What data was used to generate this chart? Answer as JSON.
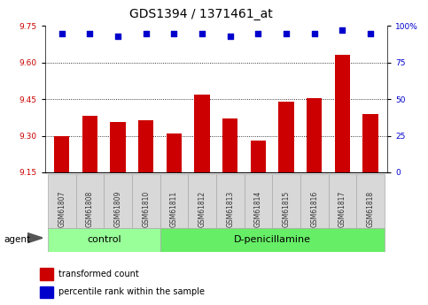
{
  "title": "GDS1394 / 1371461_at",
  "samples": [
    "GSM61807",
    "GSM61808",
    "GSM61809",
    "GSM61810",
    "GSM61811",
    "GSM61812",
    "GSM61813",
    "GSM61814",
    "GSM61815",
    "GSM61816",
    "GSM61817",
    "GSM61818"
  ],
  "bar_values": [
    9.3,
    9.38,
    9.355,
    9.365,
    9.31,
    9.47,
    9.37,
    9.28,
    9.44,
    9.455,
    9.63,
    9.39
  ],
  "percentile_values": [
    95,
    95,
    93,
    95,
    95,
    95,
    93,
    95,
    95,
    95,
    97,
    95
  ],
  "bar_color": "#cc0000",
  "percentile_color": "#0000cc",
  "ylim_left": [
    9.15,
    9.75
  ],
  "ylim_right": [
    0,
    100
  ],
  "yticks_left": [
    9.15,
    9.3,
    9.45,
    9.6,
    9.75
  ],
  "yticks_right": [
    0,
    25,
    50,
    75,
    100
  ],
  "grid_values": [
    9.3,
    9.45,
    9.6
  ],
  "n_control": 4,
  "control_label": "control",
  "treatment_label": "D-penicillamine",
  "agent_label": "agent",
  "legend_bar_label": "transformed count",
  "legend_dot_label": "percentile rank within the sample",
  "bar_width": 0.55,
  "bg_color": "#ffffff",
  "sample_box_color": "#d8d8d8",
  "control_group_color": "#99ff99",
  "treatment_group_color": "#66ee66",
  "title_fontsize": 10,
  "tick_fontsize": 6.5,
  "group_fontsize": 8,
  "legend_fontsize": 7
}
